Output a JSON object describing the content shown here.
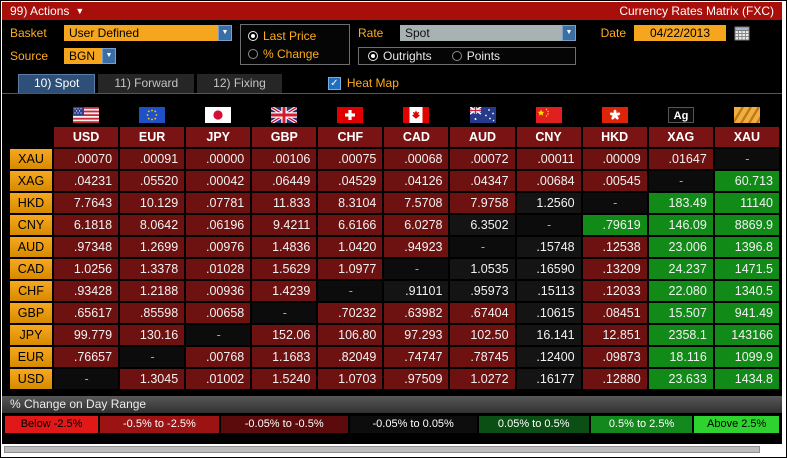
{
  "title_bar": {
    "actions_label": "99) Actions",
    "title": "Currency Rates Matrix (FXC)"
  },
  "controls": {
    "basket_label": "Basket",
    "basket_value": "User Defined",
    "source_label": "Source",
    "source_value": "BGN",
    "price_radio": {
      "options": [
        "Last Price",
        "% Change"
      ],
      "selected": "Last Price"
    },
    "rate_label": "Rate",
    "rate_value": "Spot",
    "rate_radio": {
      "options": [
        "Outrights",
        "Points"
      ],
      "selected": "Outrights"
    },
    "date_label": "Date",
    "date_value": "04/22/2013"
  },
  "tabs": [
    {
      "label": "10) Spot",
      "active": true
    },
    {
      "label": "11) Forward",
      "active": false
    },
    {
      "label": "12) Fixing",
      "active": false
    }
  ],
  "heatmap": {
    "label": "Heat Map",
    "checked": true
  },
  "heat_colors": {
    "n": "#6d1111",
    "k": "#141414",
    "g": "#118a18",
    "s": "#0c0c0c",
    "header": "#7a1414"
  },
  "matrix": {
    "columns": [
      "USD",
      "EUR",
      "JPY",
      "GBP",
      "CHF",
      "CAD",
      "AUD",
      "CNY",
      "HKD",
      "XAG",
      "XAU"
    ],
    "flags": [
      "us",
      "eu",
      "jp",
      "gb",
      "ch",
      "ca",
      "au",
      "cn",
      "hk",
      "ag",
      "gold"
    ],
    "rows": [
      {
        "label": "XAU",
        "cells": [
          {
            "v": ".00070",
            "h": "n"
          },
          {
            "v": ".00091",
            "h": "n"
          },
          {
            "v": ".00000",
            "h": "n"
          },
          {
            "v": ".00106",
            "h": "n"
          },
          {
            "v": ".00075",
            "h": "n"
          },
          {
            "v": ".00068",
            "h": "n"
          },
          {
            "v": ".00072",
            "h": "n"
          },
          {
            "v": ".00011",
            "h": "n"
          },
          {
            "v": ".00009",
            "h": "n"
          },
          {
            "v": ".01647",
            "h": "n"
          },
          {
            "v": "-",
            "h": "s"
          }
        ]
      },
      {
        "label": "XAG",
        "cells": [
          {
            "v": ".04231",
            "h": "n"
          },
          {
            "v": ".05520",
            "h": "n"
          },
          {
            "v": ".00042",
            "h": "n"
          },
          {
            "v": ".06449",
            "h": "n"
          },
          {
            "v": ".04529",
            "h": "n"
          },
          {
            "v": ".04126",
            "h": "n"
          },
          {
            "v": ".04347",
            "h": "n"
          },
          {
            "v": ".00684",
            "h": "n"
          },
          {
            "v": ".00545",
            "h": "n"
          },
          {
            "v": "-",
            "h": "s"
          },
          {
            "v": "60.713",
            "h": "g"
          }
        ]
      },
      {
        "label": "HKD",
        "cells": [
          {
            "v": "7.7643",
            "h": "n"
          },
          {
            "v": "10.129",
            "h": "n"
          },
          {
            "v": ".07781",
            "h": "n"
          },
          {
            "v": "11.833",
            "h": "n"
          },
          {
            "v": "8.3104",
            "h": "n"
          },
          {
            "v": "7.5708",
            "h": "n"
          },
          {
            "v": "7.9758",
            "h": "n"
          },
          {
            "v": "1.2560",
            "h": "k"
          },
          {
            "v": "-",
            "h": "s"
          },
          {
            "v": "183.49",
            "h": "g"
          },
          {
            "v": "11140",
            "h": "g"
          }
        ]
      },
      {
        "label": "CNY",
        "cells": [
          {
            "v": "6.1818",
            "h": "n"
          },
          {
            "v": "8.0642",
            "h": "n"
          },
          {
            "v": ".06196",
            "h": "n"
          },
          {
            "v": "9.4211",
            "h": "n"
          },
          {
            "v": "6.6166",
            "h": "n"
          },
          {
            "v": "6.0278",
            "h": "n"
          },
          {
            "v": "6.3502",
            "h": "k"
          },
          {
            "v": "-",
            "h": "s"
          },
          {
            "v": ".79619",
            "h": "g"
          },
          {
            "v": "146.09",
            "h": "g"
          },
          {
            "v": "8869.9",
            "h": "g"
          }
        ]
      },
      {
        "label": "AUD",
        "cells": [
          {
            "v": ".97348",
            "h": "n"
          },
          {
            "v": "1.2699",
            "h": "n"
          },
          {
            "v": ".00976",
            "h": "n"
          },
          {
            "v": "1.4836",
            "h": "n"
          },
          {
            "v": "1.0420",
            "h": "n"
          },
          {
            "v": ".94923",
            "h": "n"
          },
          {
            "v": "-",
            "h": "s"
          },
          {
            "v": ".15748",
            "h": "k"
          },
          {
            "v": ".12538",
            "h": "n"
          },
          {
            "v": "23.006",
            "h": "g"
          },
          {
            "v": "1396.8",
            "h": "g"
          }
        ]
      },
      {
        "label": "CAD",
        "cells": [
          {
            "v": "1.0256",
            "h": "n"
          },
          {
            "v": "1.3378",
            "h": "n"
          },
          {
            "v": ".01028",
            "h": "n"
          },
          {
            "v": "1.5629",
            "h": "n"
          },
          {
            "v": "1.0977",
            "h": "n"
          },
          {
            "v": "-",
            "h": "s"
          },
          {
            "v": "1.0535",
            "h": "k"
          },
          {
            "v": ".16590",
            "h": "k"
          },
          {
            "v": ".13209",
            "h": "n"
          },
          {
            "v": "24.237",
            "h": "g"
          },
          {
            "v": "1471.5",
            "h": "g"
          }
        ]
      },
      {
        "label": "CHF",
        "cells": [
          {
            "v": ".93428",
            "h": "n"
          },
          {
            "v": "1.2188",
            "h": "n"
          },
          {
            "v": ".00936",
            "h": "n"
          },
          {
            "v": "1.4239",
            "h": "n"
          },
          {
            "v": "-",
            "h": "s"
          },
          {
            "v": ".91101",
            "h": "k"
          },
          {
            "v": ".95973",
            "h": "k"
          },
          {
            "v": ".15113",
            "h": "k"
          },
          {
            "v": ".12033",
            "h": "n"
          },
          {
            "v": "22.080",
            "h": "g"
          },
          {
            "v": "1340.5",
            "h": "g"
          }
        ]
      },
      {
        "label": "GBP",
        "cells": [
          {
            "v": ".65617",
            "h": "n"
          },
          {
            "v": ".85598",
            "h": "n"
          },
          {
            "v": ".00658",
            "h": "n"
          },
          {
            "v": "-",
            "h": "s"
          },
          {
            "v": ".70232",
            "h": "n"
          },
          {
            "v": ".63982",
            "h": "n"
          },
          {
            "v": ".67404",
            "h": "n"
          },
          {
            "v": ".10615",
            "h": "k"
          },
          {
            "v": ".08451",
            "h": "n"
          },
          {
            "v": "15.507",
            "h": "g"
          },
          {
            "v": "941.49",
            "h": "g"
          }
        ]
      },
      {
        "label": "JPY",
        "cells": [
          {
            "v": "99.779",
            "h": "n"
          },
          {
            "v": "130.16",
            "h": "n"
          },
          {
            "v": "-",
            "h": "s"
          },
          {
            "v": "152.06",
            "h": "n"
          },
          {
            "v": "106.80",
            "h": "n"
          },
          {
            "v": "97.293",
            "h": "n"
          },
          {
            "v": "102.50",
            "h": "n"
          },
          {
            "v": "16.141",
            "h": "k"
          },
          {
            "v": "12.851",
            "h": "n"
          },
          {
            "v": "2358.1",
            "h": "g"
          },
          {
            "v": "143166",
            "h": "g"
          }
        ]
      },
      {
        "label": "EUR",
        "cells": [
          {
            "v": ".76657",
            "h": "n"
          },
          {
            "v": "-",
            "h": "s"
          },
          {
            "v": ".00768",
            "h": "n"
          },
          {
            "v": "1.1683",
            "h": "n"
          },
          {
            "v": ".82049",
            "h": "n"
          },
          {
            "v": ".74747",
            "h": "n"
          },
          {
            "v": ".78745",
            "h": "n"
          },
          {
            "v": ".12400",
            "h": "k"
          },
          {
            "v": ".09873",
            "h": "n"
          },
          {
            "v": "18.116",
            "h": "g"
          },
          {
            "v": "1099.9",
            "h": "g"
          }
        ]
      },
      {
        "label": "USD",
        "cells": [
          {
            "v": "-",
            "h": "s"
          },
          {
            "v": "1.3045",
            "h": "n"
          },
          {
            "v": ".01002",
            "h": "n"
          },
          {
            "v": "1.5240",
            "h": "n"
          },
          {
            "v": "1.0703",
            "h": "n"
          },
          {
            "v": ".97509",
            "h": "n"
          },
          {
            "v": "1.0272",
            "h": "n"
          },
          {
            "v": ".16177",
            "h": "k"
          },
          {
            "v": ".12880",
            "h": "n"
          },
          {
            "v": "23.633",
            "h": "g"
          },
          {
            "v": "1434.8",
            "h": "g"
          }
        ]
      }
    ]
  },
  "legend": {
    "title": "% Change on Day Range",
    "items": [
      {
        "label": "Below -2.5%",
        "bg": "#e01818",
        "fg": "#000000"
      },
      {
        "label": "-0.5% to -2.5%",
        "bg": "#9b1313",
        "fg": "#ffffff"
      },
      {
        "label": "-0.05% to -0.5%",
        "bg": "#5b0b0b",
        "fg": "#ffffff"
      },
      {
        "label": "-0.05% to 0.05%",
        "bg": "#0d0d0d",
        "fg": "#ffffff"
      },
      {
        "label": "0.05% to 0.5%",
        "bg": "#0b4f14",
        "fg": "#ffffff"
      },
      {
        "label": "0.5% to 2.5%",
        "bg": "#13881c",
        "fg": "#ffffff"
      },
      {
        "label": "Above 2.5%",
        "bg": "#2fd32f",
        "fg": "#000000"
      }
    ]
  }
}
